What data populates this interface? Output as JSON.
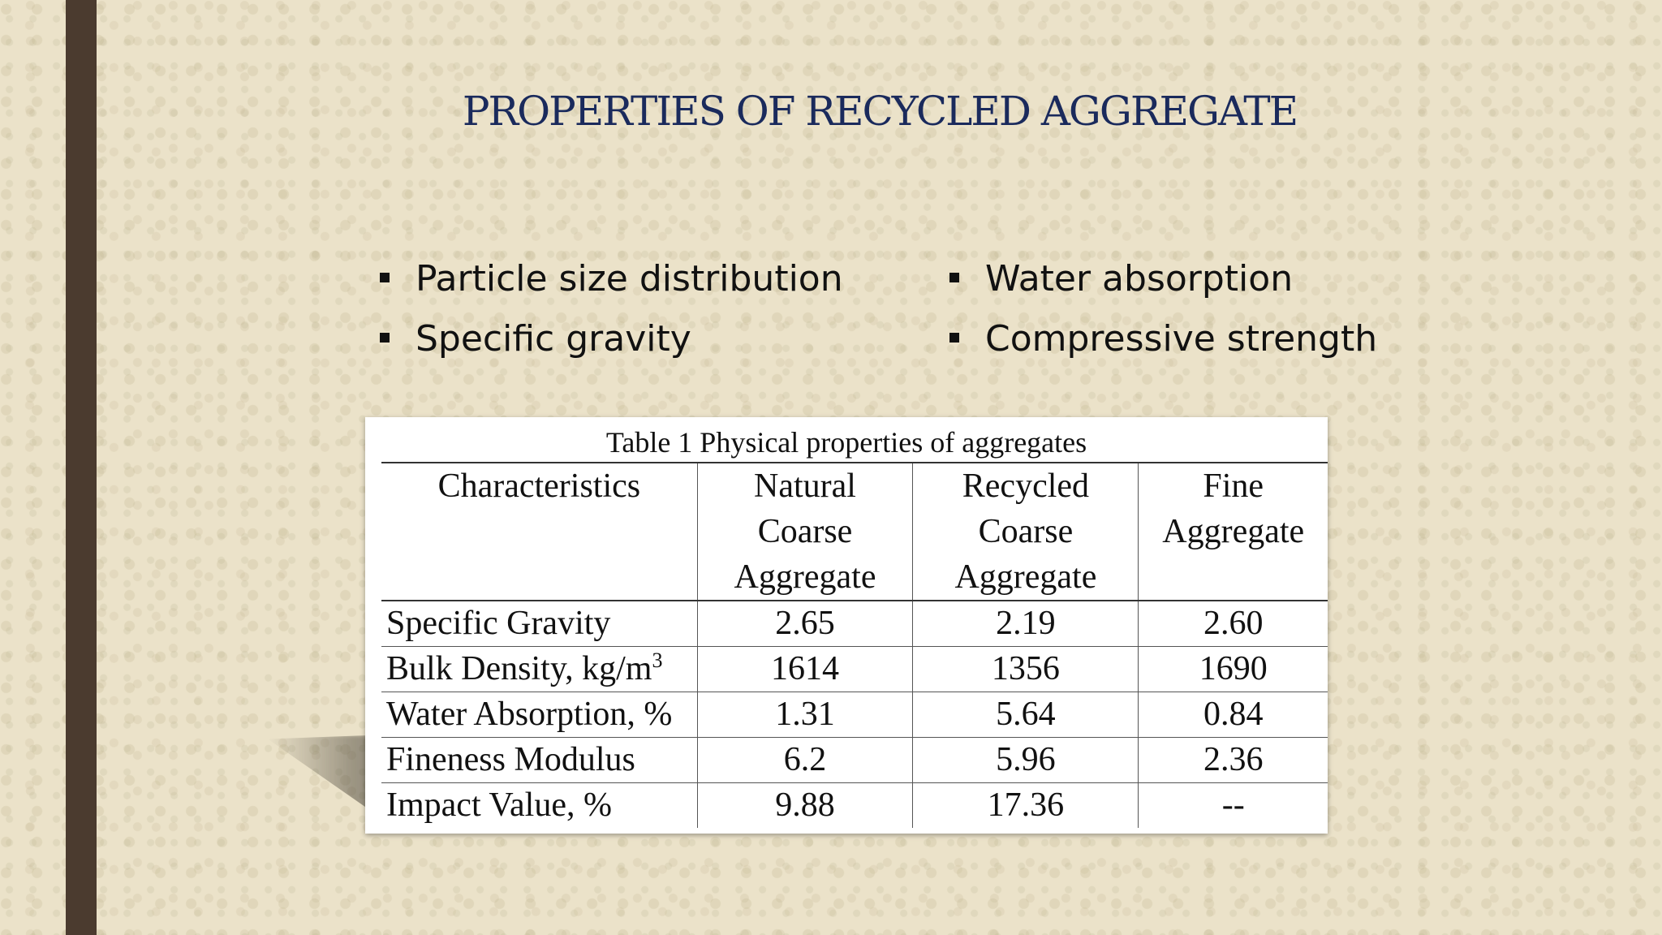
{
  "slide": {
    "title": "PROPERTIES OF RECYCLED AGGREGATE",
    "bullets_left": [
      "Particle size distribution",
      "Specific gravity"
    ],
    "bullets_right": [
      "Water absorption",
      "Compressive strength"
    ]
  },
  "table": {
    "caption": "Table 1 Physical properties of aggregates",
    "headers": [
      "Characteristics",
      "Natural Coarse Aggregate",
      "Recycled Coarse Aggregate",
      "Fine Aggregate"
    ],
    "rows": [
      {
        "label": "Specific Gravity",
        "label_sup": "",
        "values": [
          "2.65",
          "2.19",
          "2.60"
        ]
      },
      {
        "label": "Bulk Density, kg/m",
        "label_sup": "3",
        "values": [
          "1614",
          "1356",
          "1690"
        ]
      },
      {
        "label": "Water Absorption, %",
        "label_sup": "",
        "values": [
          "1.31",
          "5.64",
          "0.84"
        ]
      },
      {
        "label": "Fineness Modulus",
        "label_sup": "",
        "values": [
          "6.2",
          "5.96",
          "2.36"
        ]
      },
      {
        "label": "Impact Value, %",
        "label_sup": "",
        "values": [
          "9.88",
          "17.36",
          "--"
        ]
      }
    ]
  },
  "colors": {
    "title": "#1a2a5c",
    "left_bar": "#4b3b2f",
    "background": "#ebe2c9"
  }
}
